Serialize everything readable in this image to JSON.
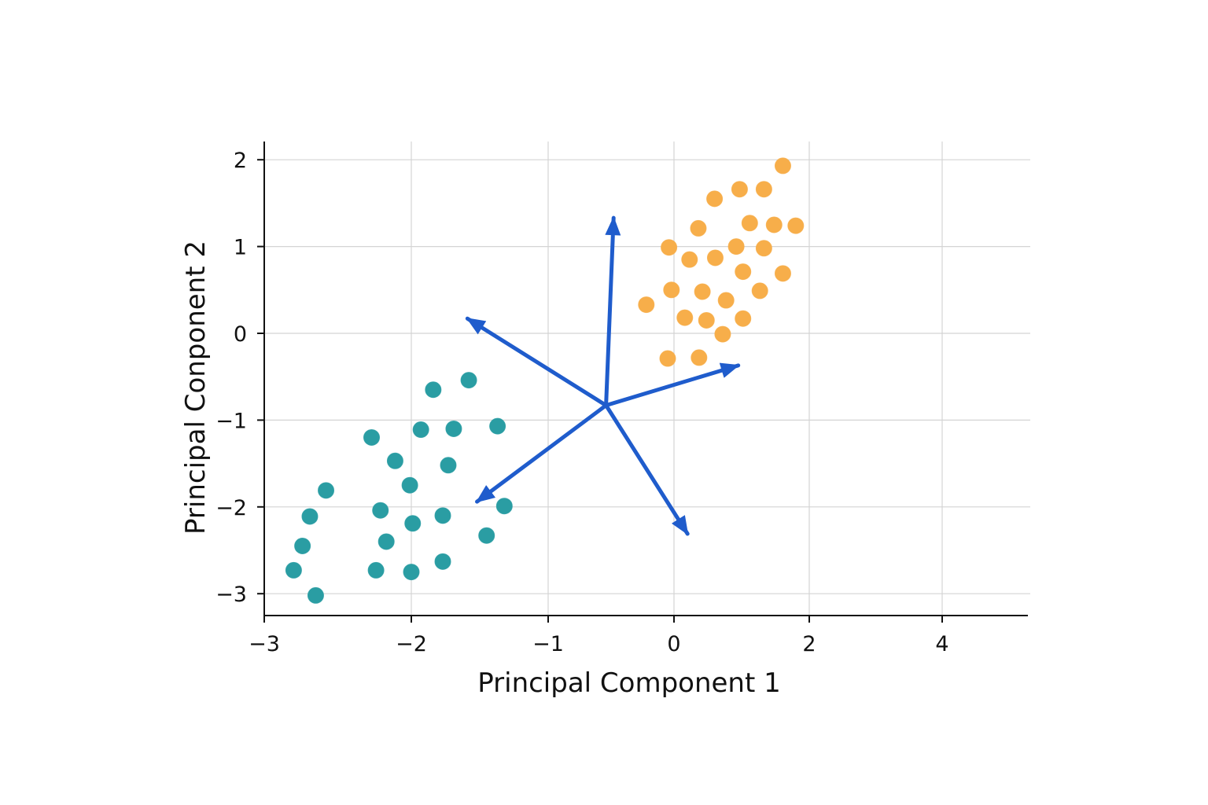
{
  "chart_data": {
    "type": "scatter",
    "title": "",
    "xlabel": "Principal Component 1",
    "ylabel": "Principal Conponent 2",
    "x_ticks": [
      {
        "value": -3,
        "label": "−3"
      },
      {
        "value": -2,
        "label": "−2"
      },
      {
        "value": -1,
        "label": "−1"
      },
      {
        "value": 0,
        "label": "0"
      },
      {
        "value": 2,
        "label": "2"
      },
      {
        "value": 4,
        "label": "4"
      }
    ],
    "y_ticks": [
      {
        "value": 2,
        "label": "2"
      },
      {
        "value": 1,
        "label": "1"
      },
      {
        "value": 0,
        "label": "0"
      },
      {
        "value": -1,
        "label": "−1"
      },
      {
        "value": -2,
        "label": "−2"
      },
      {
        "value": -3,
        "label": "−3"
      }
    ],
    "grid": true,
    "series": [
      {
        "color": "#2a9da3",
        "points": [
          [
            -2.8,
            -2.73
          ],
          [
            -2.69,
            -2.11
          ],
          [
            -2.74,
            -2.45
          ],
          [
            -2.58,
            -1.81
          ],
          [
            -2.65,
            -3.02
          ],
          [
            -2.27,
            -1.2
          ],
          [
            -2.11,
            -1.47
          ],
          [
            -2.21,
            -2.04
          ],
          [
            -2.17,
            -2.4
          ],
          [
            -2.24,
            -2.73
          ],
          [
            -1.84,
            -0.65
          ],
          [
            -1.93,
            -1.11
          ],
          [
            -2.01,
            -1.75
          ],
          [
            -1.99,
            -2.19
          ],
          [
            -2.0,
            -2.75
          ],
          [
            -1.73,
            -1.52
          ],
          [
            -1.69,
            -1.1
          ],
          [
            -1.58,
            -0.54
          ],
          [
            -1.37,
            -1.07
          ],
          [
            -1.45,
            -2.33
          ],
          [
            -1.32,
            -1.99
          ],
          [
            -1.77,
            -2.63
          ],
          [
            -1.77,
            -2.1
          ]
        ]
      },
      {
        "color": "#f7ae4a",
        "points": [
          [
            -0.22,
            0.33
          ],
          [
            -0.04,
            0.99
          ],
          [
            -0.02,
            0.5
          ],
          [
            0.16,
            0.18
          ],
          [
            0.23,
            0.85
          ],
          [
            -0.05,
            -0.29
          ],
          [
            0.36,
            1.21
          ],
          [
            0.48,
            0.15
          ],
          [
            0.42,
            0.48
          ],
          [
            0.6,
            1.55
          ],
          [
            0.61,
            0.87
          ],
          [
            0.72,
            -0.01
          ],
          [
            0.77,
            0.38
          ],
          [
            0.97,
            1.66
          ],
          [
            0.92,
            1.0
          ],
          [
            1.02,
            0.71
          ],
          [
            1.02,
            0.17
          ],
          [
            1.12,
            1.27
          ],
          [
            1.27,
            0.49
          ],
          [
            1.33,
            0.98
          ],
          [
            1.33,
            1.66
          ],
          [
            1.48,
            1.25
          ],
          [
            1.61,
            1.93
          ],
          [
            1.61,
            0.69
          ],
          [
            1.8,
            1.24
          ],
          [
            0.37,
            -0.28
          ]
        ]
      }
    ],
    "vectors": {
      "color": "#1f5ccc",
      "origin": [
        -0.54,
        -0.83
      ],
      "tips": [
        [
          -0.48,
          1.33
        ],
        [
          -1.59,
          0.17
        ],
        [
          -1.52,
          -1.94
        ],
        [
          0.2,
          -2.31
        ],
        [
          0.95,
          -0.37
        ]
      ]
    }
  }
}
